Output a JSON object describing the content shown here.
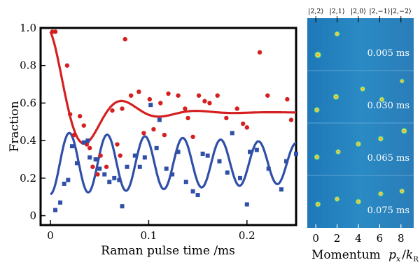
{
  "chart_data": [
    {
      "type": "scatter",
      "xlabel": "Raman pulse time /ms",
      "ylabel": "Fraction",
      "xlim": [
        -0.01,
        0.25
      ],
      "ylim": [
        -0.05,
        1.0
      ],
      "x_ticks": [
        0,
        0.1,
        0.2
      ],
      "x_tick_labels": [
        "0",
        "0.1",
        "0.2"
      ],
      "y_ticks": [
        0,
        0.2,
        0.4,
        0.6,
        0.8,
        1.0
      ],
      "y_tick_labels": [
        "0",
        "0.2",
        "0.4",
        "0.6",
        "0.8",
        "1.0"
      ],
      "grid": false,
      "series": [
        {
          "color": "#d42020",
          "marker": "circle",
          "points": [
            [
              0.002,
              0.98
            ],
            [
              0.005,
              0.98
            ],
            [
              0.017,
              0.8
            ],
            [
              0.02,
              0.54
            ],
            [
              0.024,
              0.43
            ],
            [
              0.03,
              0.53
            ],
            [
              0.034,
              0.48
            ],
            [
              0.037,
              0.38
            ],
            [
              0.04,
              0.36
            ],
            [
              0.043,
              0.26
            ],
            [
              0.048,
              0.22
            ],
            [
              0.051,
              0.32
            ],
            [
              0.057,
              0.26
            ],
            [
              0.063,
              0.56
            ],
            [
              0.068,
              0.38
            ],
            [
              0.071,
              0.32
            ],
            [
              0.073,
              0.57
            ],
            [
              0.076,
              0.94
            ],
            [
              0.082,
              0.64
            ],
            [
              0.09,
              0.66
            ],
            [
              0.095,
              0.44
            ],
            [
              0.101,
              0.62
            ],
            [
              0.105,
              0.46
            ],
            [
              0.112,
              0.6
            ],
            [
              0.116,
              0.43
            ],
            [
              0.12,
              0.65
            ],
            [
              0.13,
              0.64
            ],
            [
              0.137,
              0.57
            ],
            [
              0.14,
              0.52
            ],
            [
              0.145,
              0.42
            ],
            [
              0.151,
              0.64
            ],
            [
              0.157,
              0.61
            ],
            [
              0.162,
              0.6
            ],
            [
              0.17,
              0.64
            ],
            [
              0.179,
              0.52
            ],
            [
              0.19,
              0.57
            ],
            [
              0.196,
              0.49
            ],
            [
              0.2,
              0.47
            ],
            [
              0.213,
              0.87
            ],
            [
              0.221,
              0.64
            ],
            [
              0.241,
              0.62
            ],
            [
              0.245,
              0.51
            ]
          ]
        },
        {
          "color": "#2f4fa8",
          "marker": "square",
          "points": [
            [
              0.005,
              0.03
            ],
            [
              0.01,
              0.07
            ],
            [
              0.014,
              0.17
            ],
            [
              0.018,
              0.19
            ],
            [
              0.022,
              0.37
            ],
            [
              0.027,
              0.28
            ],
            [
              0.034,
              0.39
            ],
            [
              0.038,
              0.4
            ],
            [
              0.04,
              0.31
            ],
            [
              0.046,
              0.3
            ],
            [
              0.05,
              0.25
            ],
            [
              0.055,
              0.22
            ],
            [
              0.06,
              0.18
            ],
            [
              0.065,
              0.2
            ],
            [
              0.07,
              0.19
            ],
            [
              0.073,
              0.05
            ],
            [
              0.078,
              0.26
            ],
            [
              0.086,
              0.32
            ],
            [
              0.091,
              0.26
            ],
            [
              0.096,
              0.31
            ],
            [
              0.102,
              0.59
            ],
            [
              0.108,
              0.36
            ],
            [
              0.111,
              0.51
            ],
            [
              0.118,
              0.25
            ],
            [
              0.124,
              0.22
            ],
            [
              0.13,
              0.34
            ],
            [
              0.138,
              0.18
            ],
            [
              0.145,
              0.13
            ],
            [
              0.15,
              0.11
            ],
            [
              0.155,
              0.33
            ],
            [
              0.16,
              0.32
            ],
            [
              0.172,
              0.29
            ],
            [
              0.18,
              0.23
            ],
            [
              0.185,
              0.44
            ],
            [
              0.193,
              0.2
            ],
            [
              0.2,
              0.06
            ],
            [
              0.203,
              0.34
            ],
            [
              0.21,
              0.35
            ],
            [
              0.222,
              0.25
            ],
            [
              0.235,
              0.14
            ],
            [
              0.24,
              0.29
            ],
            [
              0.25,
              0.33
            ]
          ]
        }
      ],
      "fits": [
        {
          "color": "#d42020",
          "model": "damped_cosine",
          "offset": 0.55,
          "amplitude": 0.43,
          "period": 0.076,
          "decay": 0.038
        },
        {
          "color": "#2f4fa8",
          "model": "damped_cosine",
          "offset": 0.28,
          "amplitude": -0.165,
          "period": 0.0385,
          "decay": 1.0
        }
      ]
    },
    {
      "type": "heatmap",
      "xlabel": "Momentum",
      "xlabel_math": {
        "var": "p",
        "sub": "x",
        "den": "k",
        "den_sub": "R"
      },
      "x_ticks": [
        0,
        2,
        4,
        6,
        8
      ],
      "x_tick_labels": [
        "0",
        "2",
        "4",
        "6",
        "8"
      ],
      "xlim": [
        -0.8,
        9.2
      ],
      "state_labels": [
        "|2,2⟩",
        "|2,1⟩",
        "|2,0⟩",
        "|2,−1⟩",
        "|2,−2⟩"
      ],
      "panels": [
        {
          "time_label": "0.005 ms",
          "spots": [
            [
              0.2,
              0.7,
              0.9
            ],
            [
              2.0,
              0.3,
              0.5
            ]
          ]
        },
        {
          "time_label": "0.030 ms",
          "spots": [
            [
              0.1,
              0.75,
              0.6
            ],
            [
              1.9,
              0.5,
              0.7
            ],
            [
              4.4,
              0.35,
              0.5
            ],
            [
              6.2,
              0.55,
              0.5
            ],
            [
              8.1,
              0.2,
              0.3
            ]
          ]
        },
        {
          "time_label": "0.065 ms",
          "spots": [
            [
              0.1,
              0.65,
              0.6
            ],
            [
              2.1,
              0.55,
              0.5
            ],
            [
              4.0,
              0.4,
              0.6
            ],
            [
              6.1,
              0.3,
              0.6
            ],
            [
              8.3,
              0.15,
              0.7
            ]
          ]
        },
        {
          "time_label": "0.075 ms",
          "spots": [
            [
              0.2,
              0.55,
              0.6
            ],
            [
              2.0,
              0.45,
              0.5
            ],
            [
              4.0,
              0.5,
              0.6
            ],
            [
              6.1,
              0.35,
              0.5
            ],
            [
              8.1,
              0.3,
              0.5
            ]
          ]
        }
      ]
    }
  ]
}
